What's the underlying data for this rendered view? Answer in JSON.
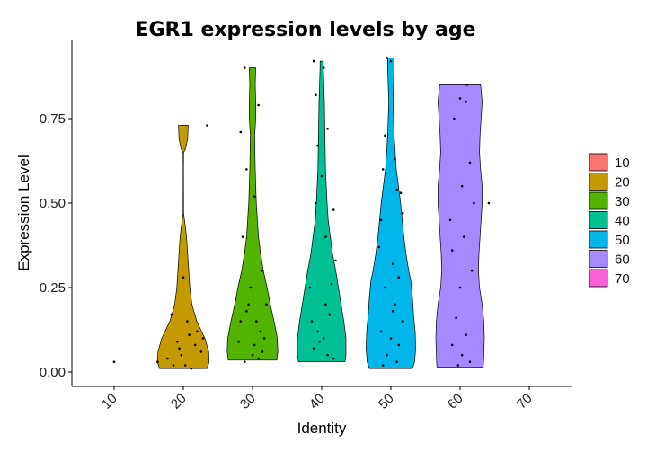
{
  "chart_data": {
    "type": "violin",
    "title": "EGR1 expression levels by age",
    "xlabel": "Identity",
    "ylabel": "Expression Level",
    "categories": [
      "10",
      "20",
      "30",
      "40",
      "50",
      "60",
      "70"
    ],
    "ylim": [
      -0.04,
      0.94
    ],
    "yticks": [
      "0.00",
      "0.25",
      "0.50",
      "0.75"
    ],
    "ytick_values": [
      0,
      0.25,
      0.5,
      0.75
    ],
    "grid": false,
    "legend_position": "right",
    "legend": [
      {
        "name": "10",
        "color": "#F8766D"
      },
      {
        "name": "20",
        "color": "#C49A00"
      },
      {
        "name": "30",
        "color": "#53B400"
      },
      {
        "name": "40",
        "color": "#00C094"
      },
      {
        "name": "50",
        "color": "#00B6EB"
      },
      {
        "name": "60",
        "color": "#A58AFF"
      },
      {
        "name": "70",
        "color": "#FB61D7"
      }
    ],
    "violins": [
      {
        "category": "20",
        "color": "#C49A00",
        "profile": [
          [
            0.01,
            0.44
          ],
          [
            0.03,
            0.48
          ],
          [
            0.06,
            0.47
          ],
          [
            0.1,
            0.4
          ],
          [
            0.15,
            0.25
          ],
          [
            0.2,
            0.16
          ],
          [
            0.25,
            0.12
          ],
          [
            0.3,
            0.1
          ],
          [
            0.35,
            0.08
          ],
          [
            0.4,
            0.06
          ],
          [
            0.44,
            0.03
          ],
          [
            0.47,
            0.005
          ],
          [
            0.6,
            0.003
          ],
          [
            0.65,
            0.005
          ],
          [
            0.66,
            0.04
          ],
          [
            0.69,
            0.08
          ],
          [
            0.73,
            0.09
          ]
        ],
        "points": [
          [
            -0.6,
            0.17
          ],
          [
            -0.3,
            0.09
          ],
          [
            -0.1,
            0.05
          ],
          [
            0.1,
            0.02
          ],
          [
            0.3,
            0.11
          ],
          [
            0.6,
            0.08
          ],
          [
            0.9,
            0.06
          ],
          [
            -0.8,
            0.04
          ],
          [
            -0.5,
            0.02
          ],
          [
            0.0,
            0.28
          ],
          [
            0.2,
            0.15
          ],
          [
            0.4,
            0.01
          ],
          [
            0.7,
            0.12
          ],
          [
            1.2,
            0.73
          ],
          [
            -1.3,
            0.03
          ],
          [
            1.0,
            0.1
          ],
          [
            -0.2,
            0.07
          ]
        ]
      },
      {
        "category": "30",
        "color": "#53B400",
        "profile": [
          [
            0.035,
            0.45
          ],
          [
            0.06,
            0.47
          ],
          [
            0.1,
            0.46
          ],
          [
            0.15,
            0.4
          ],
          [
            0.2,
            0.33
          ],
          [
            0.25,
            0.27
          ],
          [
            0.3,
            0.2
          ],
          [
            0.35,
            0.15
          ],
          [
            0.4,
            0.11
          ],
          [
            0.5,
            0.07
          ],
          [
            0.6,
            0.05
          ],
          [
            0.7,
            0.04
          ],
          [
            0.75,
            0.06
          ],
          [
            0.8,
            0.06
          ],
          [
            0.85,
            0.05
          ],
          [
            0.9,
            0.06
          ]
        ],
        "points": [
          [
            -0.4,
            0.9
          ],
          [
            0.3,
            0.79
          ],
          [
            -0.6,
            0.71
          ],
          [
            -0.3,
            0.6
          ],
          [
            0.1,
            0.52
          ],
          [
            -0.5,
            0.4
          ],
          [
            0.5,
            0.3
          ],
          [
            -0.2,
            0.2
          ],
          [
            0.2,
            0.15
          ],
          [
            0.6,
            0.1
          ],
          [
            -0.7,
            0.09
          ],
          [
            0.0,
            0.05
          ],
          [
            0.3,
            0.04
          ],
          [
            -0.3,
            0.18
          ],
          [
            0.4,
            0.12
          ],
          [
            -0.1,
            0.25
          ],
          [
            0.7,
            0.2
          ],
          [
            -0.6,
            0.15
          ],
          [
            0.1,
            0.08
          ],
          [
            0.5,
            0.06
          ],
          [
            -0.4,
            0.03
          ]
        ]
      },
      {
        "category": "40",
        "color": "#00C094",
        "profile": [
          [
            0.03,
            0.43
          ],
          [
            0.05,
            0.45
          ],
          [
            0.1,
            0.45
          ],
          [
            0.15,
            0.41
          ],
          [
            0.2,
            0.36
          ],
          [
            0.25,
            0.31
          ],
          [
            0.3,
            0.26
          ],
          [
            0.35,
            0.2
          ],
          [
            0.4,
            0.16
          ],
          [
            0.45,
            0.12
          ],
          [
            0.5,
            0.1
          ],
          [
            0.6,
            0.07
          ],
          [
            0.7,
            0.06
          ],
          [
            0.8,
            0.05
          ],
          [
            0.85,
            0.04
          ],
          [
            0.9,
            0.03
          ],
          [
            0.92,
            0.03
          ]
        ],
        "points": [
          [
            -0.4,
            0.92
          ],
          [
            0.1,
            0.9
          ],
          [
            -0.3,
            0.82
          ],
          [
            0.3,
            0.72
          ],
          [
            -0.2,
            0.67
          ],
          [
            0.0,
            0.58
          ],
          [
            -0.3,
            0.5
          ],
          [
            0.6,
            0.48
          ],
          [
            0.2,
            0.4
          ],
          [
            0.7,
            0.33
          ],
          [
            -0.6,
            0.25
          ],
          [
            0.5,
            0.26
          ],
          [
            -0.2,
            0.12
          ],
          [
            0.1,
            0.1
          ],
          [
            0.3,
            0.05
          ],
          [
            -0.4,
            0.07
          ],
          [
            0.2,
            0.2
          ],
          [
            0.4,
            0.17
          ],
          [
            -0.5,
            0.15
          ],
          [
            -0.1,
            0.09
          ],
          [
            0.6,
            0.04
          ]
        ]
      },
      {
        "category": "50",
        "color": "#00B6EB",
        "profile": [
          [
            0.01,
            0.4
          ],
          [
            0.03,
            0.44
          ],
          [
            0.07,
            0.46
          ],
          [
            0.12,
            0.45
          ],
          [
            0.17,
            0.42
          ],
          [
            0.22,
            0.4
          ],
          [
            0.27,
            0.37
          ],
          [
            0.3,
            0.33
          ],
          [
            0.35,
            0.28
          ],
          [
            0.4,
            0.24
          ],
          [
            0.45,
            0.21
          ],
          [
            0.5,
            0.18
          ],
          [
            0.55,
            0.14
          ],
          [
            0.6,
            0.1
          ],
          [
            0.7,
            0.06
          ],
          [
            0.75,
            0.05
          ],
          [
            0.8,
            0.04
          ],
          [
            0.85,
            0.05
          ],
          [
            0.9,
            0.06
          ],
          [
            0.93,
            0.06
          ]
        ],
        "points": [
          [
            -0.2,
            0.93
          ],
          [
            0.0,
            0.92
          ],
          [
            -0.3,
            0.7
          ],
          [
            0.2,
            0.63
          ],
          [
            -0.4,
            0.6
          ],
          [
            0.3,
            0.54
          ],
          [
            0.5,
            0.53
          ],
          [
            -0.5,
            0.45
          ],
          [
            0.6,
            0.47
          ],
          [
            -0.6,
            0.37
          ],
          [
            0.1,
            0.32
          ],
          [
            0.4,
            0.28
          ],
          [
            -0.3,
            0.25
          ],
          [
            0.2,
            0.2
          ],
          [
            0.6,
            0.15
          ],
          [
            -0.5,
            0.12
          ],
          [
            0.0,
            0.1
          ],
          [
            0.4,
            0.08
          ],
          [
            -0.2,
            0.05
          ],
          [
            0.3,
            0.03
          ],
          [
            -0.4,
            0.02
          ],
          [
            0.1,
            0.18
          ]
        ]
      },
      {
        "category": "60",
        "color": "#A58AFF",
        "profile": [
          [
            0.015,
            0.43
          ],
          [
            0.05,
            0.44
          ],
          [
            0.1,
            0.45
          ],
          [
            0.15,
            0.44
          ],
          [
            0.2,
            0.41
          ],
          [
            0.25,
            0.36
          ],
          [
            0.3,
            0.34
          ],
          [
            0.35,
            0.35
          ],
          [
            0.4,
            0.37
          ],
          [
            0.45,
            0.39
          ],
          [
            0.5,
            0.41
          ],
          [
            0.55,
            0.41
          ],
          [
            0.6,
            0.38
          ],
          [
            0.65,
            0.36
          ],
          [
            0.7,
            0.37
          ],
          [
            0.75,
            0.39
          ],
          [
            0.8,
            0.41
          ],
          [
            0.85,
            0.38
          ]
        ],
        "points": [
          [
            0.0,
            0.81
          ],
          [
            0.3,
            0.8
          ],
          [
            -0.3,
            0.75
          ],
          [
            0.5,
            0.62
          ],
          [
            0.1,
            0.55
          ],
          [
            -0.5,
            0.45
          ],
          [
            0.2,
            0.4
          ],
          [
            -0.4,
            0.36
          ],
          [
            0.6,
            0.3
          ],
          [
            0.0,
            0.25
          ],
          [
            -0.2,
            0.16
          ],
          [
            0.3,
            0.11
          ],
          [
            -0.4,
            0.08
          ],
          [
            0.1,
            0.05
          ],
          [
            0.5,
            0.03
          ],
          [
            -0.1,
            0.02
          ],
          [
            0.7,
            0.5
          ],
          [
            1.45,
            0.5
          ],
          [
            0.35,
            0.85
          ]
        ]
      }
    ],
    "extra_points": [
      {
        "category": "10",
        "dx": 0.0,
        "y": 0.03
      }
    ]
  }
}
